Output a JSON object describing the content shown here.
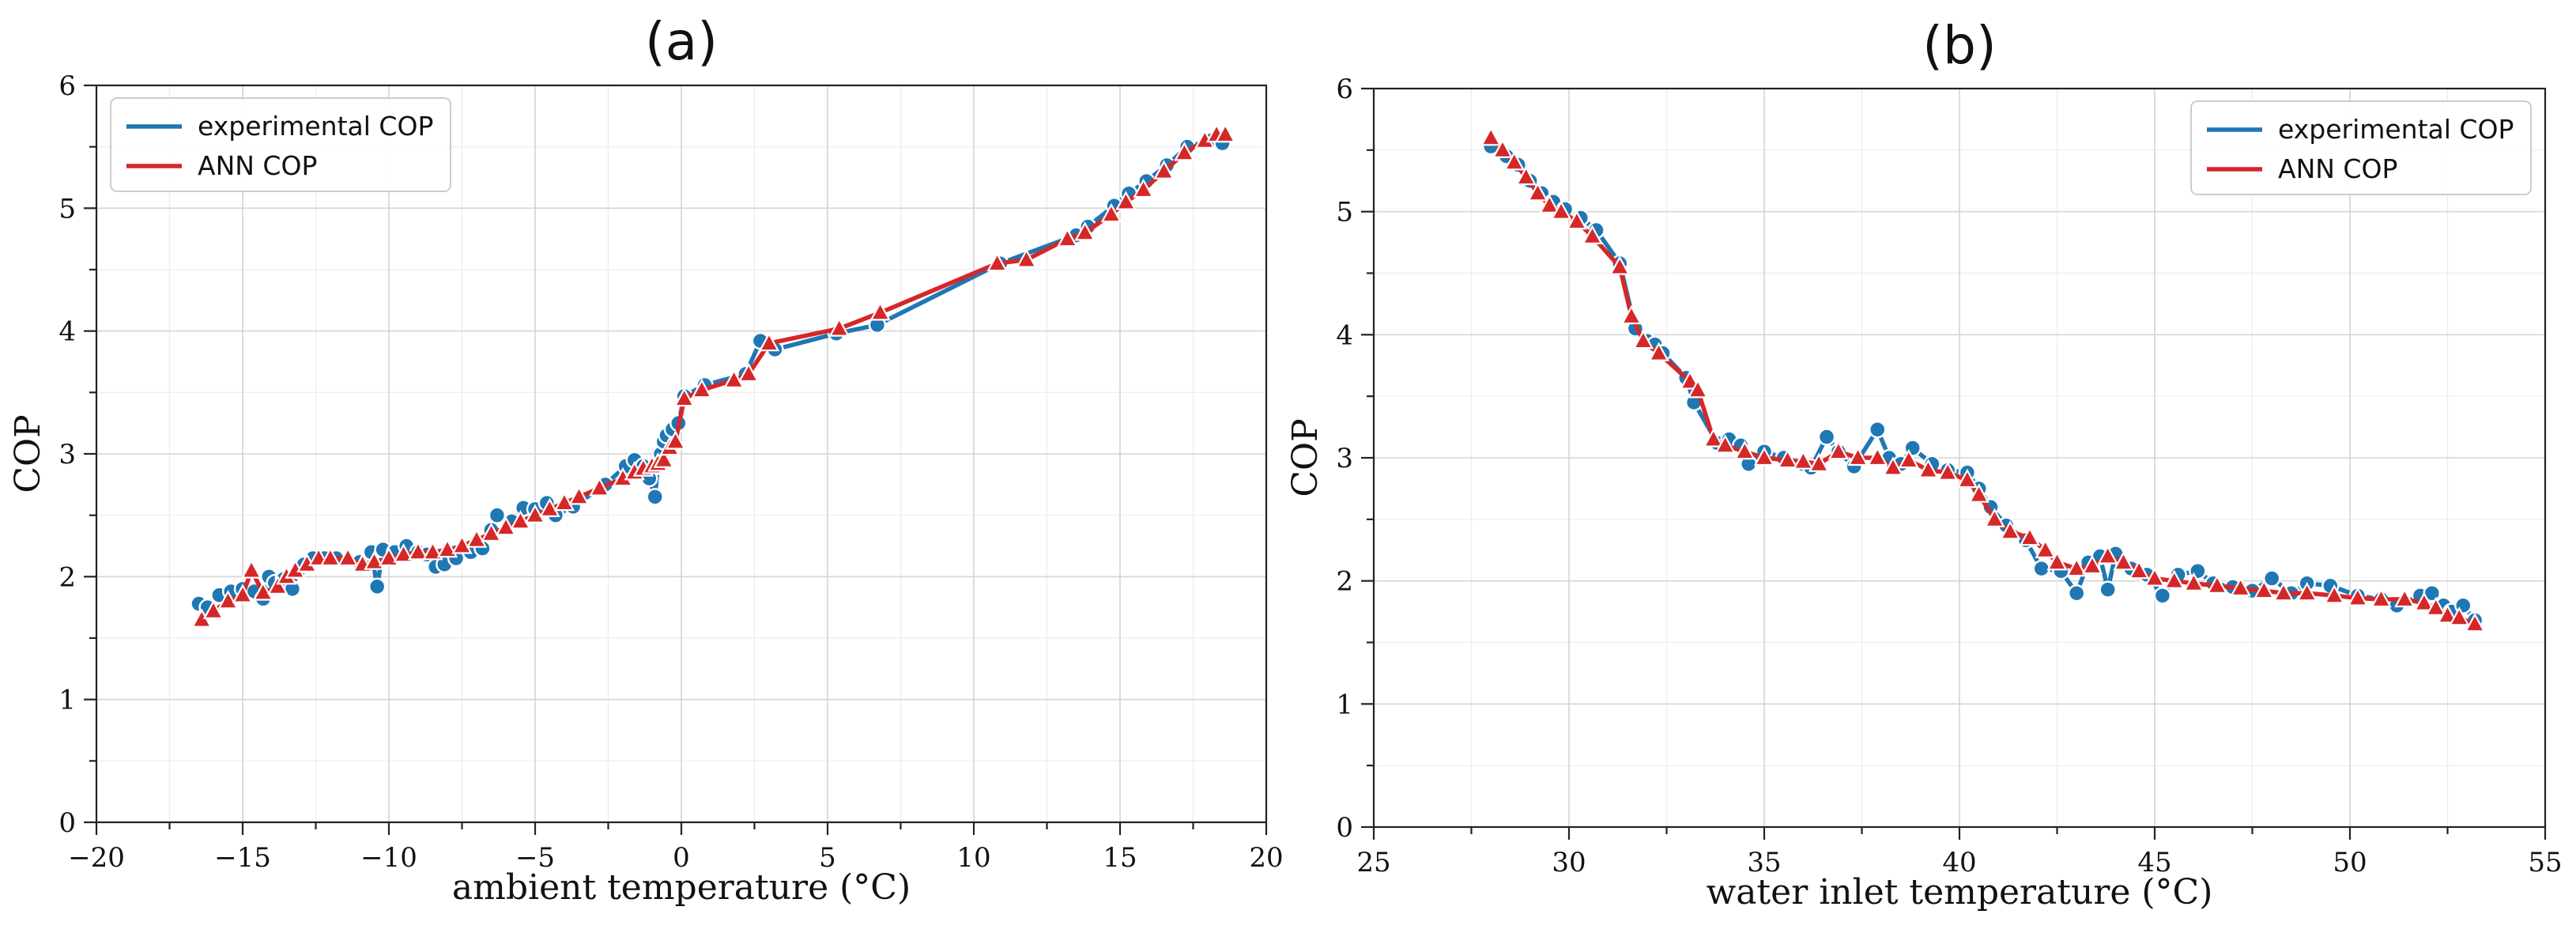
{
  "chart_data": [
    {
      "type": "line",
      "panel": "a",
      "title": "(a)",
      "xlabel": "ambient temperature (°C)",
      "ylabel": "COP",
      "xlim": [
        -20,
        20
      ],
      "ylim": [
        0,
        6
      ],
      "xticks": [
        -20,
        -15,
        -10,
        -5,
        0,
        5,
        10,
        15,
        20
      ],
      "xtick_labels": [
        "−20",
        "−15",
        "−10",
        "−5",
        "0",
        "5",
        "10",
        "15",
        "20"
      ],
      "yticks": [
        0,
        1,
        2,
        3,
        4,
        5,
        6
      ],
      "ytick_labels": [
        "0",
        "1",
        "2",
        "3",
        "4",
        "5",
        "6"
      ],
      "grid": true,
      "legend_position": "top-left",
      "series": [
        {
          "name": "experimental COP",
          "color": "#1f77b4",
          "marker": "circle",
          "points": [
            [
              -16.5,
              1.78
            ],
            [
              -16.2,
              1.75
            ],
            [
              -15.8,
              1.85
            ],
            [
              -15.4,
              1.88
            ],
            [
              -15.0,
              1.9
            ],
            [
              -14.6,
              1.88
            ],
            [
              -14.3,
              1.82
            ],
            [
              -14.1,
              2.0
            ],
            [
              -13.9,
              1.95
            ],
            [
              -13.6,
              1.98
            ],
            [
              -13.3,
              1.9
            ],
            [
              -13.1,
              2.05
            ],
            [
              -12.9,
              2.1
            ],
            [
              -12.6,
              2.15
            ],
            [
              -12.2,
              2.15
            ],
            [
              -11.8,
              2.15
            ],
            [
              -11.0,
              2.12
            ],
            [
              -10.6,
              2.2
            ],
            [
              -10.4,
              1.92
            ],
            [
              -10.2,
              2.22
            ],
            [
              -9.8,
              2.2
            ],
            [
              -9.4,
              2.25
            ],
            [
              -9.0,
              2.2
            ],
            [
              -8.7,
              2.18
            ],
            [
              -8.4,
              2.08
            ],
            [
              -8.1,
              2.1
            ],
            [
              -7.7,
              2.15
            ],
            [
              -7.2,
              2.2
            ],
            [
              -6.8,
              2.23
            ],
            [
              -6.5,
              2.38
            ],
            [
              -6.3,
              2.5
            ],
            [
              -5.8,
              2.45
            ],
            [
              -5.4,
              2.56
            ],
            [
              -5.0,
              2.55
            ],
            [
              -4.6,
              2.6
            ],
            [
              -4.3,
              2.5
            ],
            [
              -3.7,
              2.57
            ],
            [
              -2.6,
              2.75
            ],
            [
              -1.9,
              2.9
            ],
            [
              -1.6,
              2.95
            ],
            [
              -1.3,
              2.9
            ],
            [
              -1.1,
              2.8
            ],
            [
              -0.9,
              2.65
            ],
            [
              -0.8,
              2.9
            ],
            [
              -0.7,
              3.0
            ],
            [
              -0.6,
              3.1
            ],
            [
              -0.5,
              3.15
            ],
            [
              -0.3,
              3.2
            ],
            [
              -0.1,
              3.25
            ],
            [
              0.1,
              3.47
            ],
            [
              0.8,
              3.56
            ],
            [
              2.2,
              3.65
            ],
            [
              2.7,
              3.92
            ],
            [
              3.2,
              3.85
            ],
            [
              5.3,
              3.98
            ],
            [
              6.7,
              4.05
            ],
            [
              10.9,
              4.55
            ],
            [
              13.5,
              4.78
            ],
            [
              13.9,
              4.85
            ],
            [
              14.8,
              5.02
            ],
            [
              15.3,
              5.12
            ],
            [
              15.9,
              5.22
            ],
            [
              16.6,
              5.35
            ],
            [
              17.3,
              5.5
            ],
            [
              18.1,
              5.55
            ],
            [
              18.5,
              5.53
            ]
          ]
        },
        {
          "name": "ANN COP",
          "color": "#d62728",
          "marker": "triangle",
          "points": [
            [
              -16.4,
              1.65
            ],
            [
              -16.0,
              1.72
            ],
            [
              -15.5,
              1.8
            ],
            [
              -15.0,
              1.85
            ],
            [
              -14.7,
              2.05
            ],
            [
              -14.3,
              1.87
            ],
            [
              -13.8,
              1.92
            ],
            [
              -13.5,
              2.0
            ],
            [
              -13.2,
              2.05
            ],
            [
              -12.8,
              2.1
            ],
            [
              -12.4,
              2.15
            ],
            [
              -12.0,
              2.15
            ],
            [
              -11.4,
              2.15
            ],
            [
              -10.9,
              2.1
            ],
            [
              -10.5,
              2.12
            ],
            [
              -10.0,
              2.15
            ],
            [
              -9.5,
              2.18
            ],
            [
              -9.0,
              2.2
            ],
            [
              -8.5,
              2.2
            ],
            [
              -8.0,
              2.22
            ],
            [
              -7.5,
              2.25
            ],
            [
              -7.0,
              2.3
            ],
            [
              -6.5,
              2.35
            ],
            [
              -6.0,
              2.4
            ],
            [
              -5.5,
              2.45
            ],
            [
              -5.0,
              2.5
            ],
            [
              -4.5,
              2.55
            ],
            [
              -4.0,
              2.6
            ],
            [
              -3.5,
              2.65
            ],
            [
              -2.8,
              2.72
            ],
            [
              -2.0,
              2.8
            ],
            [
              -1.6,
              2.85
            ],
            [
              -1.3,
              2.88
            ],
            [
              -1.0,
              2.9
            ],
            [
              -0.8,
              2.92
            ],
            [
              -0.6,
              2.95
            ],
            [
              -0.4,
              3.05
            ],
            [
              -0.2,
              3.1
            ],
            [
              0.1,
              3.45
            ],
            [
              0.7,
              3.52
            ],
            [
              1.8,
              3.6
            ],
            [
              2.3,
              3.65
            ],
            [
              3.0,
              3.9
            ],
            [
              5.4,
              4.02
            ],
            [
              6.8,
              4.15
            ],
            [
              10.8,
              4.55
            ],
            [
              11.8,
              4.58
            ],
            [
              13.2,
              4.75
            ],
            [
              13.8,
              4.8
            ],
            [
              14.7,
              4.95
            ],
            [
              15.2,
              5.05
            ],
            [
              15.8,
              5.15
            ],
            [
              16.5,
              5.3
            ],
            [
              17.2,
              5.45
            ],
            [
              17.9,
              5.55
            ],
            [
              18.3,
              5.6
            ],
            [
              18.6,
              5.6
            ]
          ]
        }
      ]
    },
    {
      "type": "line",
      "panel": "b",
      "title": "(b)",
      "xlabel": "water inlet temperature (°C)",
      "ylabel": "COP",
      "xlim": [
        25,
        55
      ],
      "ylim": [
        0,
        6
      ],
      "xticks": [
        25,
        30,
        35,
        40,
        45,
        50,
        55
      ],
      "xtick_labels": [
        "25",
        "30",
        "35",
        "40",
        "45",
        "50",
        "55"
      ],
      "yticks": [
        0,
        1,
        2,
        3,
        4,
        5,
        6
      ],
      "ytick_labels": [
        "0",
        "1",
        "2",
        "3",
        "4",
        "5",
        "6"
      ],
      "grid": true,
      "legend_position": "top-right",
      "series": [
        {
          "name": "experimental COP",
          "color": "#1f77b4",
          "marker": "circle",
          "points": [
            [
              28.0,
              5.53
            ],
            [
              28.4,
              5.45
            ],
            [
              28.7,
              5.38
            ],
            [
              29.0,
              5.25
            ],
            [
              29.3,
              5.15
            ],
            [
              29.6,
              5.08
            ],
            [
              29.9,
              5.02
            ],
            [
              30.3,
              4.95
            ],
            [
              30.7,
              4.85
            ],
            [
              31.3,
              4.58
            ],
            [
              31.7,
              4.05
            ],
            [
              32.0,
              3.95
            ],
            [
              32.2,
              3.92
            ],
            [
              32.4,
              3.85
            ],
            [
              33.0,
              3.65
            ],
            [
              33.2,
              3.45
            ],
            [
              33.8,
              3.12
            ],
            [
              34.1,
              3.15
            ],
            [
              34.4,
              3.1
            ],
            [
              34.6,
              2.95
            ],
            [
              35.0,
              3.05
            ],
            [
              35.5,
              3.0
            ],
            [
              36.0,
              2.95
            ],
            [
              36.2,
              2.92
            ],
            [
              36.6,
              3.17
            ],
            [
              36.9,
              3.05
            ],
            [
              37.3,
              2.93
            ],
            [
              37.9,
              3.23
            ],
            [
              38.2,
              3.0
            ],
            [
              38.5,
              2.95
            ],
            [
              38.8,
              3.08
            ],
            [
              39.3,
              2.95
            ],
            [
              39.7,
              2.9
            ],
            [
              40.2,
              2.88
            ],
            [
              40.5,
              2.75
            ],
            [
              40.8,
              2.6
            ],
            [
              41.2,
              2.45
            ],
            [
              41.7,
              2.33
            ],
            [
              42.1,
              2.1
            ],
            [
              42.6,
              2.08
            ],
            [
              43.0,
              1.9
            ],
            [
              43.3,
              2.15
            ],
            [
              43.6,
              2.2
            ],
            [
              43.8,
              1.93
            ],
            [
              44.0,
              2.22
            ],
            [
              44.4,
              2.1
            ],
            [
              44.8,
              2.05
            ],
            [
              45.2,
              1.88
            ],
            [
              45.6,
              2.05
            ],
            [
              46.1,
              2.08
            ],
            [
              46.5,
              1.98
            ],
            [
              47.0,
              1.95
            ],
            [
              47.5,
              1.92
            ],
            [
              48.0,
              2.02
            ],
            [
              48.5,
              1.9
            ],
            [
              48.9,
              1.98
            ],
            [
              49.5,
              1.96
            ],
            [
              50.2,
              1.88
            ],
            [
              50.8,
              1.85
            ],
            [
              51.2,
              1.8
            ],
            [
              51.8,
              1.88
            ],
            [
              52.1,
              1.9
            ],
            [
              52.4,
              1.8
            ],
            [
              52.6,
              1.75
            ],
            [
              52.9,
              1.8
            ],
            [
              53.2,
              1.68
            ]
          ]
        },
        {
          "name": "ANN COP",
          "color": "#d62728",
          "marker": "triangle",
          "points": [
            [
              28.0,
              5.6
            ],
            [
              28.3,
              5.5
            ],
            [
              28.6,
              5.4
            ],
            [
              28.9,
              5.28
            ],
            [
              29.2,
              5.15
            ],
            [
              29.5,
              5.05
            ],
            [
              29.8,
              5.0
            ],
            [
              30.2,
              4.92
            ],
            [
              30.6,
              4.8
            ],
            [
              31.3,
              4.55
            ],
            [
              31.6,
              4.15
            ],
            [
              31.9,
              3.95
            ],
            [
              32.3,
              3.85
            ],
            [
              33.1,
              3.62
            ],
            [
              33.3,
              3.55
            ],
            [
              33.7,
              3.15
            ],
            [
              34.0,
              3.1
            ],
            [
              34.5,
              3.05
            ],
            [
              35.0,
              3.0
            ],
            [
              35.6,
              2.98
            ],
            [
              36.0,
              2.97
            ],
            [
              36.4,
              2.95
            ],
            [
              36.9,
              3.05
            ],
            [
              37.4,
              3.0
            ],
            [
              37.9,
              3.0
            ],
            [
              38.3,
              2.92
            ],
            [
              38.7,
              2.98
            ],
            [
              39.2,
              2.9
            ],
            [
              39.7,
              2.88
            ],
            [
              40.2,
              2.82
            ],
            [
              40.5,
              2.7
            ],
            [
              40.9,
              2.5
            ],
            [
              41.3,
              2.4
            ],
            [
              41.8,
              2.35
            ],
            [
              42.2,
              2.25
            ],
            [
              42.5,
              2.15
            ],
            [
              43.0,
              2.1
            ],
            [
              43.4,
              2.12
            ],
            [
              43.8,
              2.2
            ],
            [
              44.2,
              2.15
            ],
            [
              44.6,
              2.08
            ],
            [
              45.0,
              2.02
            ],
            [
              45.5,
              2.0
            ],
            [
              46.0,
              1.98
            ],
            [
              46.6,
              1.96
            ],
            [
              47.2,
              1.94
            ],
            [
              47.8,
              1.92
            ],
            [
              48.3,
              1.9
            ],
            [
              48.9,
              1.9
            ],
            [
              49.6,
              1.88
            ],
            [
              50.2,
              1.86
            ],
            [
              50.8,
              1.85
            ],
            [
              51.4,
              1.85
            ],
            [
              51.9,
              1.82
            ],
            [
              52.2,
              1.78
            ],
            [
              52.5,
              1.72
            ],
            [
              52.8,
              1.7
            ],
            [
              53.2,
              1.65
            ]
          ]
        }
      ]
    }
  ]
}
